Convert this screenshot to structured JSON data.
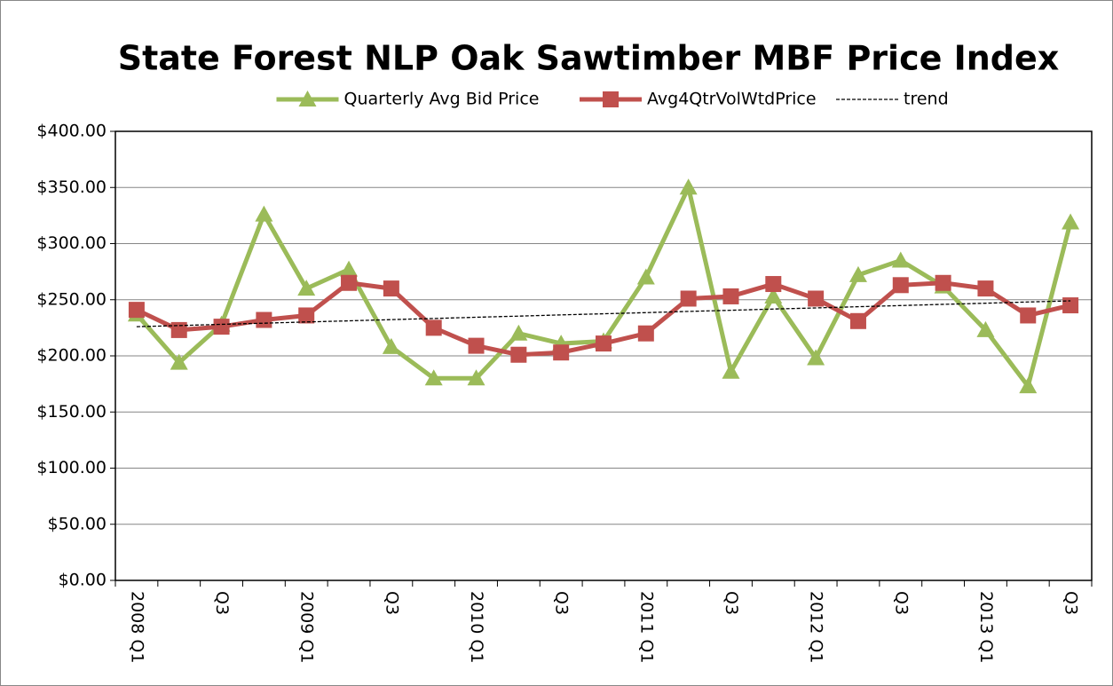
{
  "chart_data": {
    "type": "line",
    "title": "State Forest NLP Oak Sawtimber MBF Price Index",
    "categories": [
      "2008 Q1",
      null,
      "Q3",
      null,
      "2009 Q1",
      null,
      "Q3",
      null,
      "2010 Q1",
      null,
      "Q3",
      null,
      "2011 Q1",
      null,
      "Q3",
      null,
      "2012 Q1",
      null,
      "Q3",
      null,
      "2013 Q1",
      null,
      "Q3"
    ],
    "series": [
      {
        "name": "Quarterly Avg Bid Price",
        "color": "#9bbb59",
        "marker": "triangle",
        "values": [
          237,
          194,
          228,
          326,
          260,
          277,
          208,
          180,
          180,
          220,
          211,
          213,
          270,
          350,
          186,
          253,
          198,
          272,
          285,
          262,
          223,
          173,
          319
        ]
      },
      {
        "name": "Avg4QtrVolWtdPrice",
        "color": "#c0504d",
        "marker": "square",
        "values": [
          241,
          223,
          226,
          232,
          236,
          265,
          260,
          225,
          209,
          201,
          203,
          211,
          220,
          251,
          253,
          264,
          251,
          231,
          263,
          265,
          260,
          236,
          245
        ]
      },
      {
        "name": "trend",
        "color": "#000000",
        "marker": "none",
        "dashed": true,
        "values": [
          226,
          227,
          228.1,
          229.1,
          230.2,
          231.2,
          232.3,
          233.3,
          234.4,
          235.4,
          236.5,
          237.5,
          238.5,
          239.6,
          240.6,
          241.7,
          242.7,
          243.8,
          244.8,
          245.9,
          246.9,
          248,
          249
        ]
      }
    ],
    "ylim": [
      0,
      400
    ],
    "yticks": [
      {
        "value": 0,
        "label": "$0.00"
      },
      {
        "value": 50,
        "label": "$50.00"
      },
      {
        "value": 100,
        "label": "$100.00"
      },
      {
        "value": 150,
        "label": "$150.00"
      },
      {
        "value": 200,
        "label": "$200.00"
      },
      {
        "value": 250,
        "label": "$250.00"
      },
      {
        "value": 300,
        "label": "$300.00"
      },
      {
        "value": 350,
        "label": "$350.00"
      },
      {
        "value": 400,
        "label": "$400.00"
      }
    ],
    "grid": true,
    "legend": "top"
  }
}
